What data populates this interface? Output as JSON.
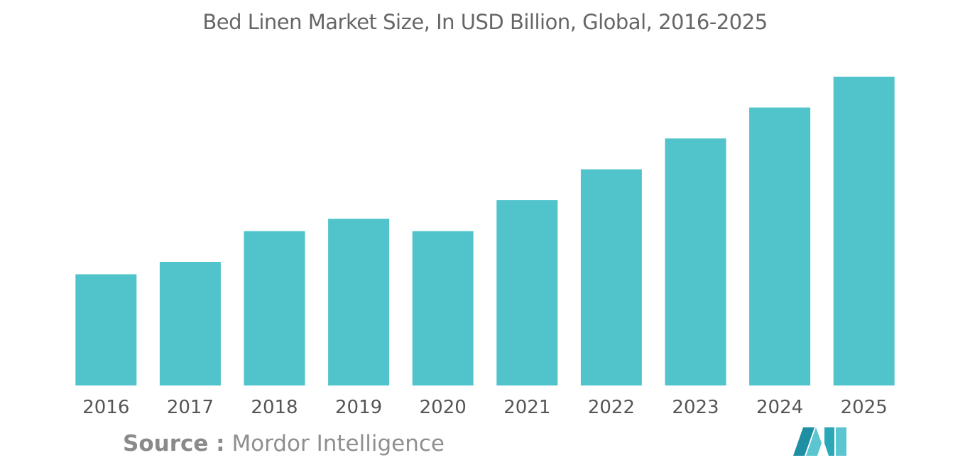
{
  "title": "Bed Linen Market Size, In USD Billion, Global, 2016-2025",
  "source": {
    "label": "Source :",
    "text": "Mordor Intelligence"
  },
  "colors": {
    "bar": "#50C4CA",
    "title": "#666666",
    "tick_label": "#555555",
    "axis": "#dddddd"
  },
  "logo": {
    "icon": "mordor-intelligence-logo",
    "colors": [
      "#1F8FA3",
      "#5CC6D0",
      "#2BA8B8"
    ]
  },
  "chart_data": {
    "type": "bar",
    "title": "Bed Linen Market Size, In USD Billion, Global, 2016-2025",
    "categories": [
      "2016",
      "2017",
      "2018",
      "2019",
      "2020",
      "2021",
      "2022",
      "2023",
      "2024",
      "2025"
    ],
    "values": [
      36,
      40,
      50,
      54,
      50,
      60,
      70,
      80,
      90,
      100
    ],
    "xlabel": "",
    "ylabel": "",
    "ylim": [
      0,
      100
    ],
    "grid": false,
    "legend": "none"
  }
}
